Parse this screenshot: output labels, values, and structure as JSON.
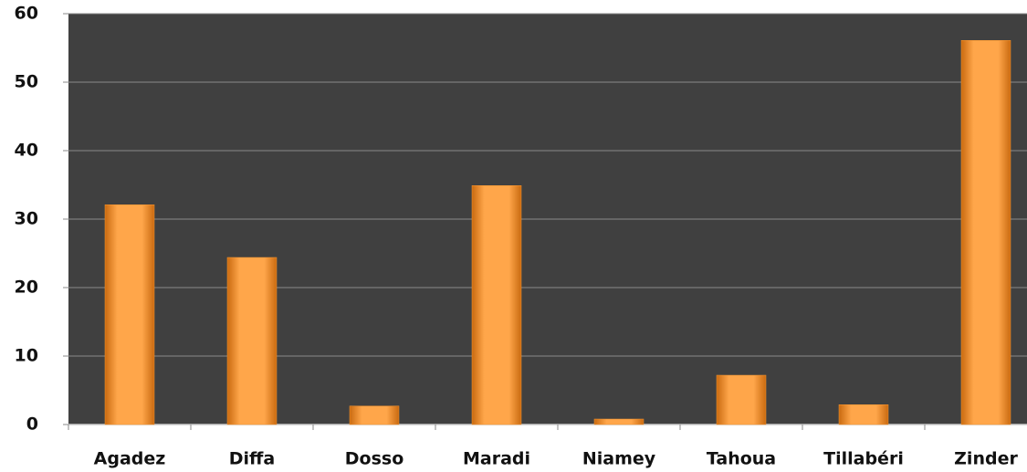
{
  "chart_data": {
    "type": "bar",
    "categories": [
      "Agadez",
      "Diffa",
      "Dosso",
      "Maradi",
      "Niamey",
      "Tahoua",
      "Tillabéri",
      "Zinder"
    ],
    "values": [
      32.1,
      24.4,
      2.7,
      34.9,
      0.8,
      7.2,
      2.9,
      56.1
    ],
    "color": "#f7952e",
    "ylim": [
      0,
      60
    ],
    "yticks": [
      0,
      10,
      20,
      30,
      40,
      50,
      60
    ],
    "grid": true
  }
}
